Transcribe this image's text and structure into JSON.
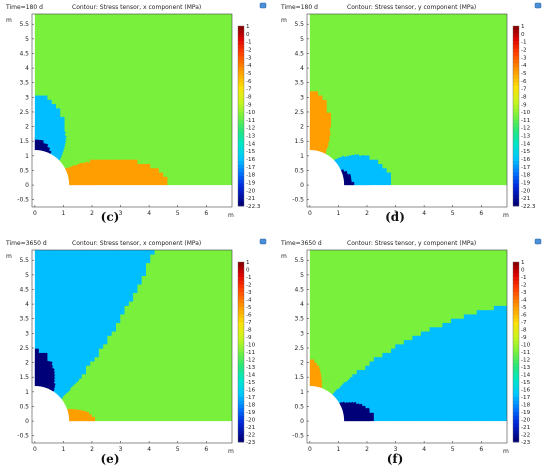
{
  "chart_data": [
    {
      "type": "heatmap",
      "caption": "(c)",
      "time_label": "Time=180 d",
      "title": "Contour: Stress tensor, x component (MPa)",
      "unit": "m",
      "xlim": [
        -0.1,
        6.9
      ],
      "ylim": [
        -0.75,
        5.85
      ],
      "x_ticks": [
        "0",
        "1",
        "2",
        "3",
        "4",
        "5",
        "6"
      ],
      "y_ticks": [
        "-0.5",
        "0",
        "0.5",
        "1",
        "1.5",
        "2",
        "2.5",
        "3",
        "3.5",
        "4",
        "4.5",
        "5",
        "5.5"
      ],
      "colorbar": [
        "1",
        "0",
        "-1",
        "-2",
        "-3",
        "-4",
        "-5",
        "-6",
        "-7",
        "-8",
        "-9",
        "-10",
        "-11",
        "-12",
        "-13",
        "-14",
        "-15",
        "-16",
        "-17",
        "-18",
        "-19",
        "-20",
        "-21",
        "-22.3"
      ],
      "field": "x180"
    },
    {
      "type": "heatmap",
      "caption": "(d)",
      "time_label": "Time=180 d",
      "title": "Contour: Stress tensor, y component (MPa)",
      "unit": "m",
      "xlim": [
        -0.1,
        6.9
      ],
      "ylim": [
        -0.75,
        5.85
      ],
      "x_ticks": [
        "0",
        "1",
        "2",
        "3",
        "4",
        "5",
        "6"
      ],
      "y_ticks": [
        "-0.5",
        "0",
        "0.5",
        "1",
        "1.5",
        "2",
        "2.5",
        "3",
        "3.5",
        "4",
        "4.5",
        "5",
        "5.5"
      ],
      "colorbar": [
        "1",
        "0",
        "-1",
        "-2",
        "-3",
        "-4",
        "-5",
        "-6",
        "-7",
        "-8",
        "-9",
        "-10",
        "-11",
        "-12",
        "-13",
        "-14",
        "-15",
        "-16",
        "-17",
        "-18",
        "-19",
        "-20",
        "-21",
        "-22.3"
      ],
      "field": "y180"
    },
    {
      "type": "heatmap",
      "caption": "(e)",
      "time_label": "Time=3650 d",
      "title": "Contour: Stress tensor, x component (MPa)",
      "unit": "m",
      "xlim": [
        -0.1,
        6.9
      ],
      "ylim": [
        -0.75,
        5.85
      ],
      "x_ticks": [
        "0",
        "1",
        "2",
        "3",
        "4",
        "5",
        "6"
      ],
      "y_ticks": [
        "-0.5",
        "0",
        "0.5",
        "1",
        "1.5",
        "2",
        "2.5",
        "3",
        "3.5",
        "4",
        "4.5",
        "5",
        "5.5"
      ],
      "colorbar": [
        "1",
        "0",
        "-1",
        "-2",
        "-3",
        "-4",
        "-5",
        "-6",
        "-7",
        "-8",
        "-9",
        "-10",
        "-11",
        "-12",
        "-13",
        "-14",
        "-15",
        "-16",
        "-17",
        "-18",
        "-19",
        "-20",
        "-21",
        "-22",
        "-23"
      ],
      "field": "x3650"
    },
    {
      "type": "heatmap",
      "caption": "(f)",
      "time_label": "Time=3650 d",
      "title": "Contour: Stress tensor, y component (MPa)",
      "unit": "m",
      "xlim": [
        -0.1,
        6.9
      ],
      "ylim": [
        -0.75,
        5.85
      ],
      "x_ticks": [
        "0",
        "1",
        "2",
        "3",
        "4",
        "5",
        "6"
      ],
      "y_ticks": [
        "-0.5",
        "0",
        "0.5",
        "1",
        "1.5",
        "2",
        "2.5",
        "3",
        "3.5",
        "4",
        "4.5",
        "5",
        "5.5"
      ],
      "colorbar": [
        "1",
        "0",
        "-1",
        "-2",
        "-3",
        "-4",
        "-5",
        "-6",
        "-7",
        "-8",
        "-9",
        "-10",
        "-11",
        "-12",
        "-13",
        "-14",
        "-15",
        "-16",
        "-17",
        "-18",
        "-19",
        "-20",
        "-21",
        "-22",
        "-23"
      ],
      "field": "y3650"
    }
  ]
}
